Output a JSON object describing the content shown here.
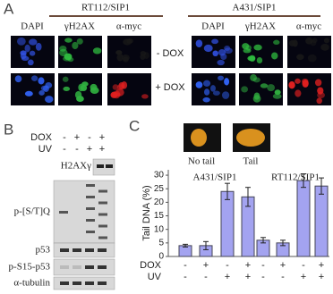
{
  "panel_a": {
    "label": "A",
    "groups": [
      {
        "title": "RT112/SIP1",
        "columns": [
          "DAPI",
          "γH2AX",
          "α-myc"
        ]
      },
      {
        "title": "A431/SIP1",
        "columns": [
          "DAPI",
          "γH2AX",
          "α-myc"
        ]
      }
    ],
    "rows": [
      "- DOX",
      "+ DOX"
    ]
  },
  "panel_b": {
    "label": "B",
    "treatments": [
      {
        "name": "DOX",
        "signs": [
          "-",
          "+",
          "-",
          "+"
        ]
      },
      {
        "name": "UV",
        "signs": [
          "-",
          "-",
          "+",
          "+"
        ]
      }
    ],
    "blots": [
      "H2AXγ",
      "p-[S/T]Q",
      "p53",
      "p-S15-p53",
      "α-tubulin"
    ]
  },
  "chart_data": {
    "type": "bar",
    "label": "C",
    "images": [
      "No tail",
      "Tail"
    ],
    "ylabel": "Tail DNA (%)",
    "groups": [
      "A431/SIP1",
      "RT112/SIP1"
    ],
    "treatments": [
      {
        "name": "DOX",
        "signs": [
          "-",
          "+",
          "-",
          "+",
          "-",
          "+",
          "-",
          "+"
        ]
      },
      {
        "name": "UV",
        "signs": [
          "-",
          "-",
          "+",
          "+",
          "-",
          "-",
          "+",
          "+"
        ]
      }
    ],
    "values": [
      4,
      4,
      24,
      22,
      6,
      5,
      28,
      26
    ],
    "errors": [
      0.5,
      1.5,
      3,
      3.5,
      1,
      1,
      2.5,
      3
    ],
    "color": "#a3a3f0",
    "ylim": [
      0,
      32
    ],
    "yticks": [
      0,
      5,
      10,
      15,
      20,
      25,
      30
    ]
  }
}
